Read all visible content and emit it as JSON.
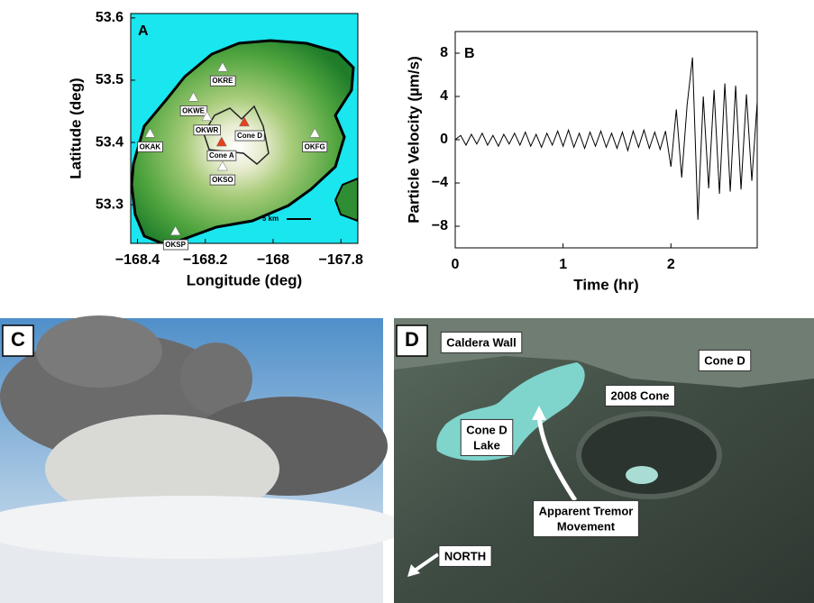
{
  "chart_data": [
    {
      "type": "map",
      "panel_label": "A",
      "x_label": "Longitude (deg)",
      "y_label": "Latitude (deg)",
      "xlim": [
        -168.42,
        -167.75
      ],
      "ylim": [
        53.238,
        53.607
      ],
      "xticks": [
        {
          "value": -168.4,
          "label": "−168.4"
        },
        {
          "value": -168.2,
          "label": "−168.2"
        },
        {
          "value": -168,
          "label": "−168"
        },
        {
          "value": -167.8,
          "label": "−167.8"
        }
      ],
      "yticks": [
        53.3,
        53.4,
        53.5,
        53.6
      ],
      "scale_label": "5 km",
      "stations": [
        {
          "name": "OKRE",
          "lon": -168.149,
          "lat": 53.52,
          "color": "#ffffff"
        },
        {
          "name": "OKWE",
          "lon": -168.235,
          "lat": 53.472,
          "color": "#ffffff"
        },
        {
          "name": "OKWR",
          "lon": -168.195,
          "lat": 53.441,
          "color": "#ffffff"
        },
        {
          "name": "OKAK",
          "lon": -168.363,
          "lat": 53.414,
          "color": "#ffffff"
        },
        {
          "name": "OKFG",
          "lon": -167.877,
          "lat": 53.414,
          "color": "#ffffff"
        },
        {
          "name": "OKSO",
          "lon": -168.149,
          "lat": 53.361,
          "color": "#ffffff"
        },
        {
          "name": "OKSP",
          "lon": -168.288,
          "lat": 53.257,
          "color": "#ffffff"
        },
        {
          "name": "Cone D",
          "lon": -168.085,
          "lat": 53.432,
          "color": "#e8401c"
        },
        {
          "name": "Cone A",
          "lon": -168.152,
          "lat": 53.4,
          "color": "#e8401c"
        }
      ]
    },
    {
      "type": "line",
      "panel_label": "B",
      "x_label": "Time (hr)",
      "y_label": "Particle Velocity (µm/s)",
      "xlim": [
        0,
        2.8
      ],
      "ylim": [
        -10,
        10
      ],
      "xticks": [
        0,
        1,
        2
      ],
      "yticks": [
        {
          "value": -8,
          "label": "−8"
        },
        {
          "value": -4,
          "label": "−4"
        },
        0,
        4,
        8
      ],
      "x": [
        0,
        0.05,
        0.1,
        0.15,
        0.2,
        0.25,
        0.3,
        0.35,
        0.4,
        0.45,
        0.5,
        0.55,
        0.6,
        0.65,
        0.7,
        0.75,
        0.8,
        0.85,
        0.9,
        0.95,
        1,
        1.05,
        1.1,
        1.15,
        1.2,
        1.25,
        1.3,
        1.35,
        1.4,
        1.45,
        1.5,
        1.55,
        1.6,
        1.65,
        1.7,
        1.75,
        1.8,
        1.85,
        1.9,
        1.95,
        2,
        2.05,
        2.1,
        2.15,
        2.2,
        2.25,
        2.3,
        2.35,
        2.4,
        2.45,
        2.5,
        2.55,
        2.6,
        2.65,
        2.7,
        2.75,
        2.8
      ],
      "series": [
        {
          "color": "#000000",
          "values": [
            0,
            0.4,
            -0.5,
            0.5,
            -0.4,
            0.6,
            -0.5,
            0.4,
            -0.6,
            0.5,
            -0.4,
            0.6,
            -0.5,
            0.7,
            -0.6,
            0.5,
            -0.7,
            0.6,
            -0.5,
            0.8,
            -0.6,
            0.9,
            -0.7,
            0.6,
            -0.8,
            0.7,
            -0.6,
            0.8,
            -0.7,
            0.6,
            -0.8,
            0.7,
            -1.0,
            0.8,
            -0.7,
            0.9,
            -0.8,
            0.7,
            -0.9,
            0.8,
            -2.5,
            2.8,
            -3.5,
            3.2,
            7.6,
            -7.4,
            4.0,
            -4.5,
            4.6,
            -5.0,
            5.2,
            -4.8,
            5.0,
            -4.6,
            4.2,
            -3.8,
            3.5
          ]
        }
      ]
    }
  ],
  "photos": [
    {
      "panel_label": "C"
    },
    {
      "panel_label": "D",
      "annotations": [
        [
          "Caldera Wall"
        ],
        [
          "Cone D"
        ],
        [
          "2008 Cone"
        ],
        [
          "Cone D",
          "Lake"
        ],
        [
          "Apparent Tremor",
          "Movement"
        ],
        [
          "NORTH"
        ]
      ]
    }
  ]
}
